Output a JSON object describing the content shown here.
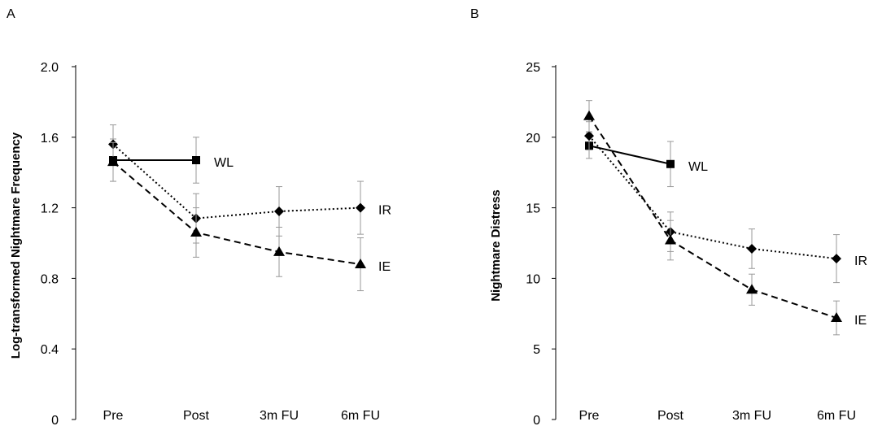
{
  "chart_data": [
    {
      "panel": "A",
      "type": "line",
      "title": "",
      "xlabel": "",
      "ylabel": "Log-transformed Nightmare Frequency",
      "categories": [
        "Pre",
        "Post",
        "3m FU",
        "6m FU"
      ],
      "ylim": [
        0,
        2.0
      ],
      "yticks": [
        "0",
        "0.4",
        "0.8",
        "1.2",
        "1.6",
        "2.0"
      ],
      "ytick_values": [
        0,
        0.4,
        0.8,
        1.2,
        1.6,
        2.0
      ],
      "grid": false,
      "series": [
        {
          "name": "WL",
          "marker": "square",
          "dash": "solid",
          "values": [
            1.47,
            1.47,
            null,
            null
          ],
          "errors": [
            0.12,
            0.13,
            null,
            null
          ]
        },
        {
          "name": "IR",
          "marker": "diamond",
          "dash": "dotted",
          "values": [
            1.56,
            1.14,
            1.18,
            1.2
          ],
          "errors": [
            0.11,
            0.14,
            0.14,
            0.15
          ]
        },
        {
          "name": "IE",
          "marker": "triangle",
          "dash": "dashed",
          "values": [
            1.46,
            1.06,
            0.95,
            0.88
          ],
          "errors": [
            0.11,
            0.14,
            0.14,
            0.15
          ]
        }
      ]
    },
    {
      "panel": "B",
      "type": "line",
      "title": "",
      "xlabel": "",
      "ylabel": "Nightmare Distress",
      "categories": [
        "Pre",
        "Post",
        "3m FU",
        "6m FU"
      ],
      "ylim": [
        0,
        25
      ],
      "yticks": [
        "0",
        "5",
        "10",
        "15",
        "20",
        "25"
      ],
      "ytick_values": [
        0,
        5,
        10,
        15,
        20,
        25
      ],
      "grid": false,
      "series": [
        {
          "name": "WL",
          "marker": "square",
          "dash": "solid",
          "values": [
            19.4,
            18.1,
            null,
            null
          ],
          "errors": [
            0.9,
            1.6,
            null,
            null
          ]
        },
        {
          "name": "IR",
          "marker": "diamond",
          "dash": "dotted",
          "values": [
            20.1,
            13.3,
            12.1,
            11.4
          ],
          "errors": [
            1.0,
            1.4,
            1.4,
            1.7
          ]
        },
        {
          "name": "IE",
          "marker": "triangle",
          "dash": "dashed",
          "values": [
            21.5,
            12.7,
            9.2,
            7.2
          ],
          "errors": [
            1.1,
            1.4,
            1.1,
            1.2
          ]
        }
      ]
    }
  ]
}
